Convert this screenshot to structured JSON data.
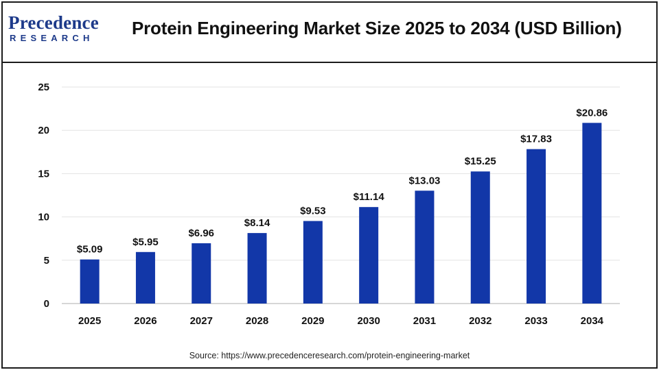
{
  "logo": {
    "word": "Precedence",
    "sub": "RESEARCH"
  },
  "title": "Protein Engineering Market Size 2025 to 2034 (USD Billion)",
  "source": "Source: https://www.precedenceresearch.com/protein-engineering-market",
  "colors": {
    "bar": "#1237a8",
    "grid": "#e3e3e3",
    "axis": "#c8c8c8",
    "text": "#111111"
  },
  "chart_data": {
    "type": "bar",
    "categories": [
      "2025",
      "2026",
      "2027",
      "2028",
      "2029",
      "2030",
      "2031",
      "2032",
      "2033",
      "2034"
    ],
    "values": [
      5.09,
      5.95,
      6.96,
      8.14,
      9.53,
      11.14,
      13.03,
      15.25,
      17.83,
      20.86
    ],
    "data_labels": [
      "$5.09",
      "$5.95",
      "$6.96",
      "$8.14",
      "$9.53",
      "$11.14",
      "$13.03",
      "$15.25",
      "$17.83",
      "$20.86"
    ],
    "ylim": [
      0,
      25
    ],
    "yticks": [
      0,
      5,
      10,
      15,
      20,
      25
    ],
    "grid": true,
    "xlabel": "",
    "ylabel": ""
  }
}
